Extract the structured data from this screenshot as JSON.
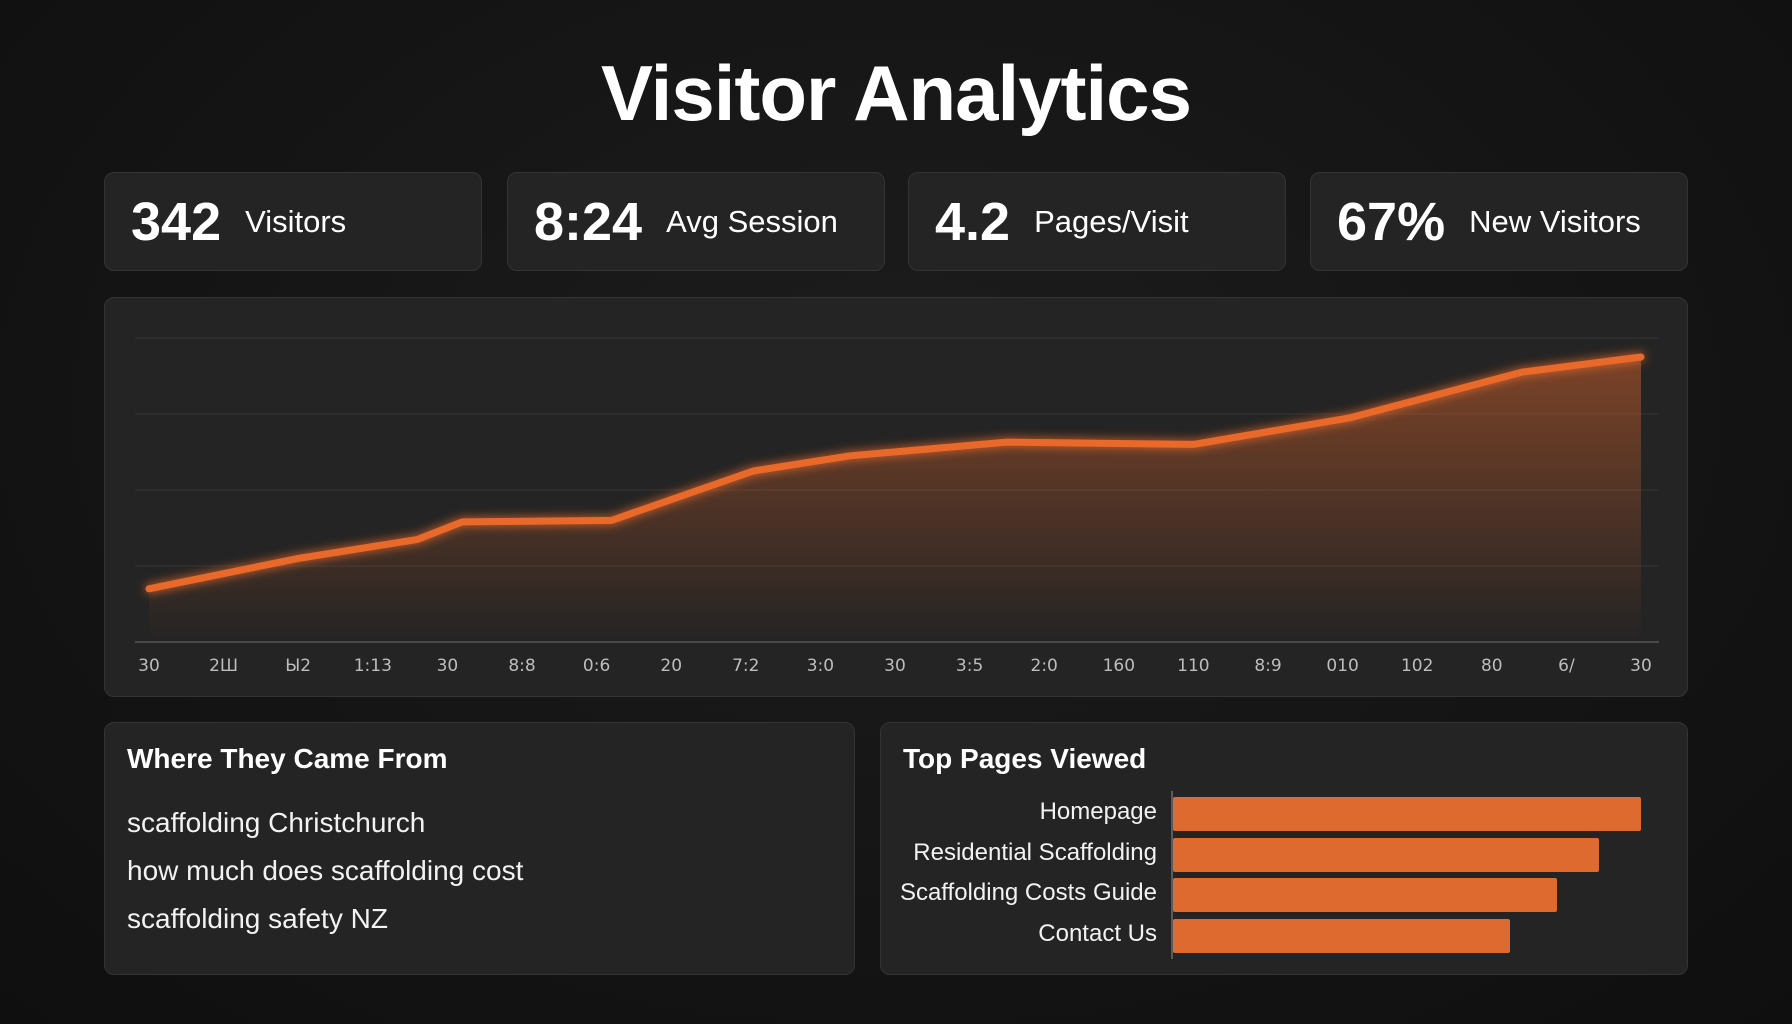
{
  "title": "Visitor Analytics",
  "accent_color": "#e8692c",
  "stats": [
    {
      "value": "342",
      "label": "Visitors"
    },
    {
      "value": "8:24",
      "label": "Avg Session"
    },
    {
      "value": "4.2",
      "label": "Pages/Visit"
    },
    {
      "value": "67%",
      "label": "New Visitors"
    }
  ],
  "sources": {
    "title": "Where They Came From",
    "items": [
      "scaffolding Christchurch",
      "how much does scaffolding cost",
      "scaffolding safety NZ"
    ]
  },
  "chart_data": [
    {
      "type": "area",
      "x": [
        "30",
        "2Ш",
        "Ы2",
        "1:13",
        "30",
        "8:8",
        "0:6",
        "20",
        "7:2",
        "3:0",
        "30",
        "3:5",
        "2:0",
        "160",
        "110",
        "8:9",
        "010",
        "102",
        "80",
        "6/",
        "30"
      ],
      "grid": true,
      "ylim": [
        0,
        4
      ],
      "series": [
        {
          "points": [
            {
              "x_index": 0,
              "y": 0.7
            },
            {
              "x_index": 2,
              "y": 1.1
            },
            {
              "x_index": 3.6,
              "y": 1.35
            },
            {
              "x_index": 4.2,
              "y": 1.58
            },
            {
              "x_index": 6.2,
              "y": 1.6
            },
            {
              "x_index": 8.1,
              "y": 2.25
            },
            {
              "x_index": 9.4,
              "y": 2.45
            },
            {
              "x_index": 11.5,
              "y": 2.63
            },
            {
              "x_index": 14,
              "y": 2.6
            },
            {
              "x_index": 16.1,
              "y": 2.95
            },
            {
              "x_index": 18.4,
              "y": 3.55
            },
            {
              "x_index": 20,
              "y": 3.75
            }
          ]
        }
      ]
    },
    {
      "type": "bar",
      "title": "Top Pages Viewed",
      "orientation": "horizontal",
      "categories": [
        "Homepage",
        "Residential Scaffolding",
        "Scaffolding Costs Guide",
        "Contact Us"
      ],
      "values": [
        100,
        91,
        82,
        72
      ],
      "xlim": [
        0,
        100
      ]
    }
  ]
}
